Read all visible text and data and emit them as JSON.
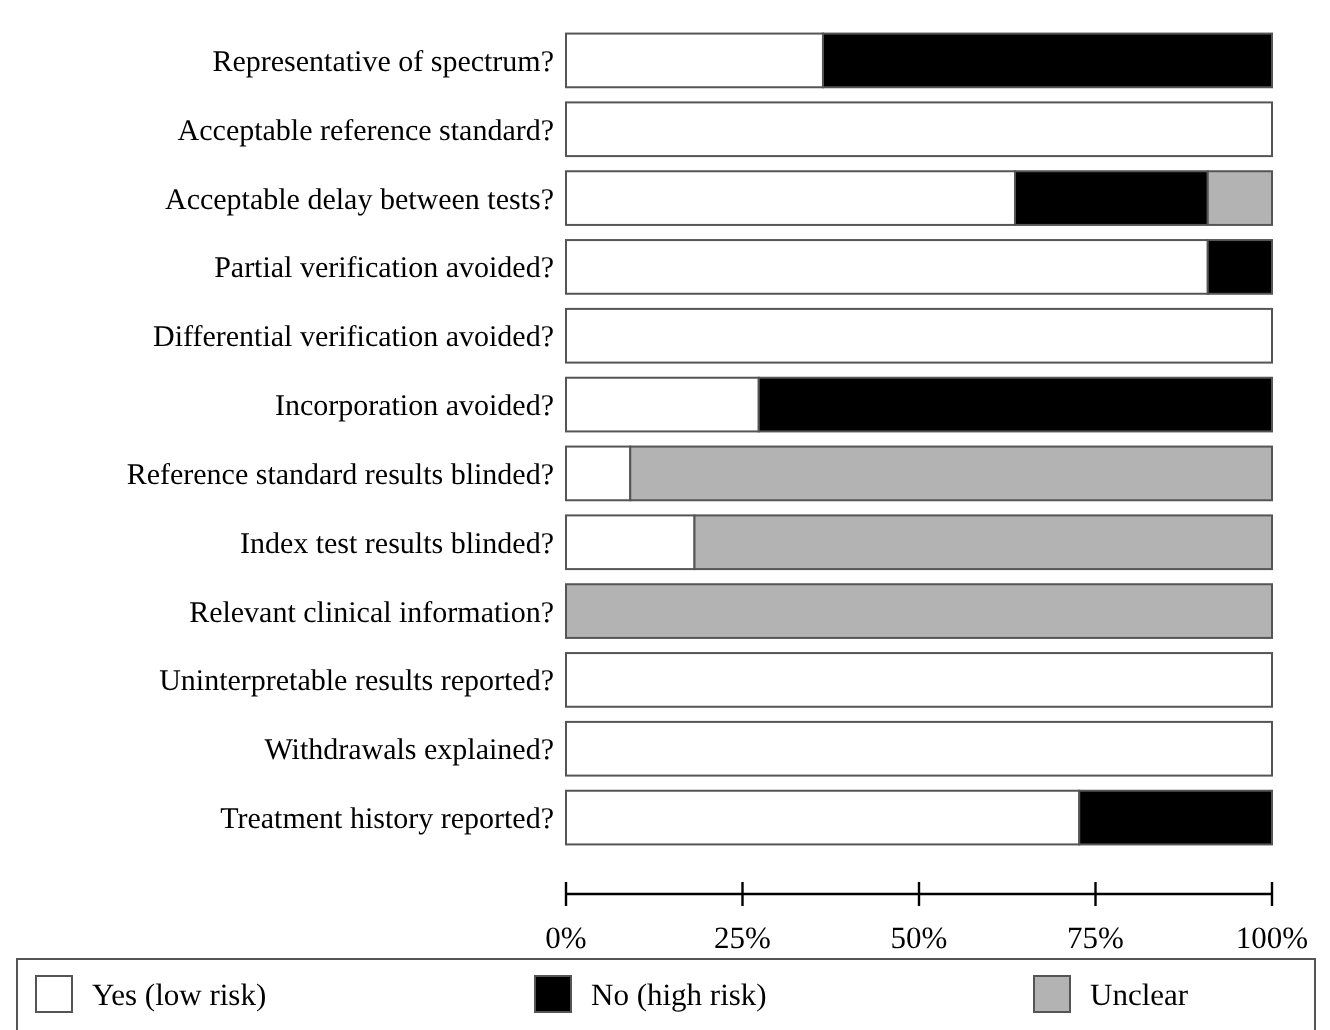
{
  "chart_data": {
    "type": "bar",
    "orientation": "horizontal",
    "stacked": true,
    "categories": [
      "Representative of spectrum?",
      "Acceptable reference standard?",
      "Acceptable delay between tests?",
      "Partial verification avoided?",
      "Differential verification avoided?",
      "Incorporation avoided?",
      "Reference standard results blinded?",
      "Index test results blinded?",
      "Relevant clinical information?",
      "Uninterpretable results reported?",
      "Withdrawals explained?",
      "Treatment history reported?"
    ],
    "series": [
      {
        "name": "Yes (low risk)",
        "color": "#ffffff",
        "values": [
          36.4,
          100,
          63.6,
          90.9,
          100,
          27.3,
          9.1,
          18.2,
          0,
          100,
          100,
          72.7
        ]
      },
      {
        "name": "No (high risk)",
        "color": "#000000",
        "values": [
          63.6,
          0,
          27.3,
          9.1,
          0,
          72.7,
          0,
          0,
          0,
          0,
          0,
          27.3
        ]
      },
      {
        "name": "Unclear",
        "color": "#b3b3b3",
        "values": [
          0,
          0,
          9.1,
          0,
          0,
          0,
          90.9,
          81.8,
          100,
          0,
          0,
          0
        ]
      }
    ],
    "xlim": [
      0,
      100
    ],
    "xticks": [
      {
        "value": 0,
        "label": "0%"
      },
      {
        "value": 25,
        "label": "25%"
      },
      {
        "value": 50,
        "label": "50%"
      },
      {
        "value": 75,
        "label": "75%"
      },
      {
        "value": 100,
        "label": "100%"
      }
    ],
    "grid": false,
    "legend": "bottom"
  }
}
